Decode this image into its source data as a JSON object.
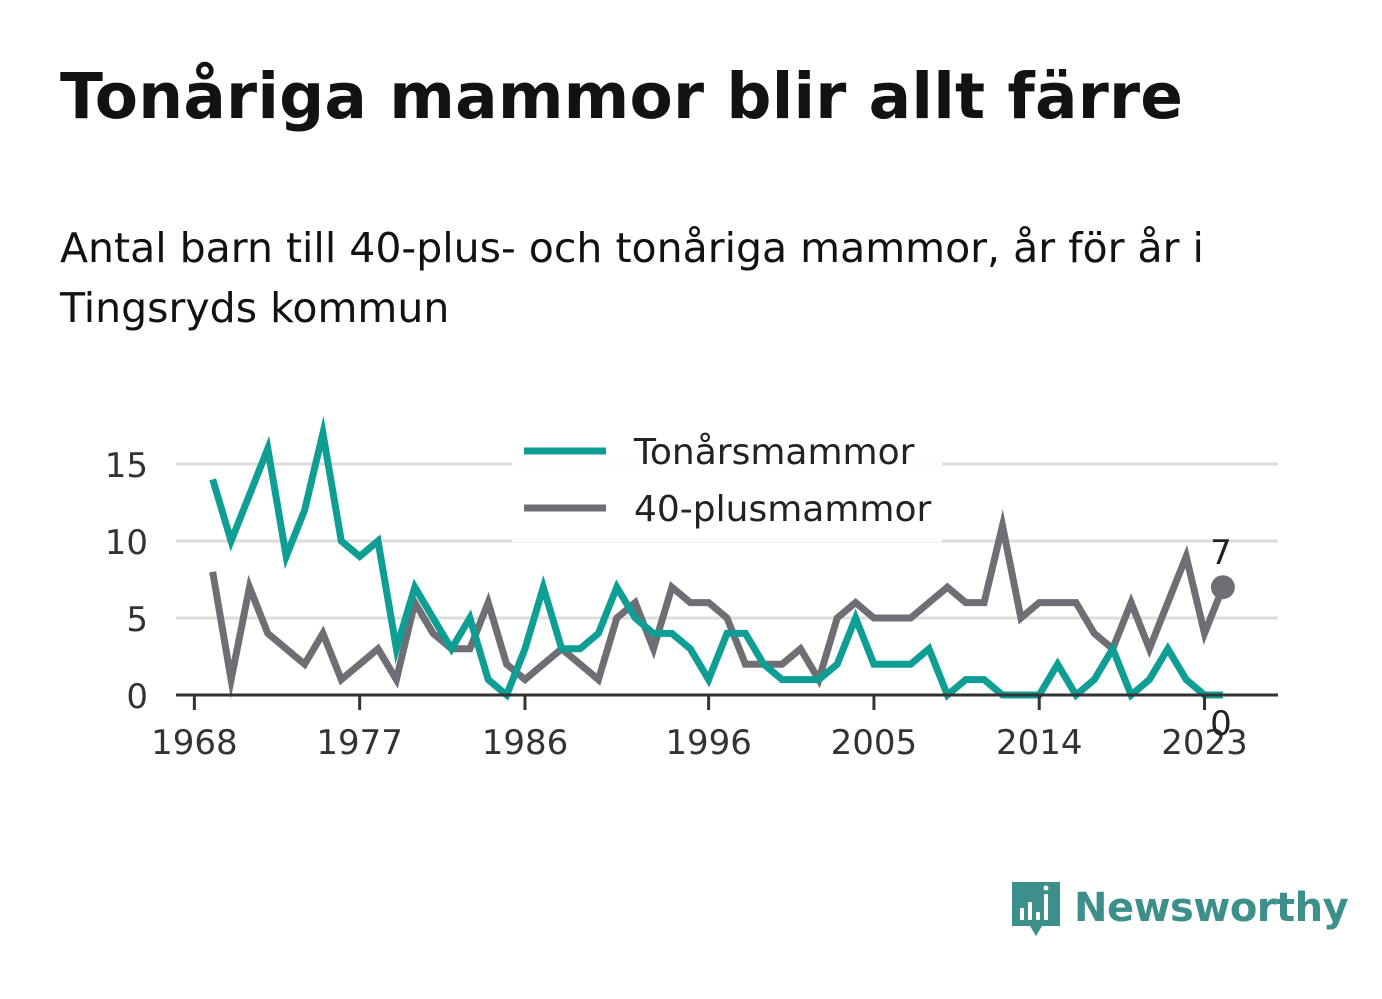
{
  "title": "Tonåriga mammor blir allt färre",
  "subtitle": "Antal barn till 40-plus- och tonåriga mammor, år för år i Tingsryds kommun",
  "brand": {
    "name": "Newsworthy",
    "icon": "newsworthy-logo-icon"
  },
  "chart_data": {
    "type": "line",
    "x": [
      1969,
      1970,
      1971,
      1972,
      1973,
      1974,
      1975,
      1976,
      1977,
      1978,
      1979,
      1980,
      1981,
      1982,
      1983,
      1984,
      1985,
      1986,
      1987,
      1988,
      1989,
      1990,
      1991,
      1992,
      1993,
      1994,
      1995,
      1996,
      1997,
      1998,
      1999,
      2000,
      2001,
      2002,
      2003,
      2004,
      2005,
      2006,
      2007,
      2008,
      2009,
      2010,
      2011,
      2012,
      2013,
      2014,
      2015,
      2016,
      2017,
      2018,
      2019,
      2020,
      2021,
      2022,
      2023,
      2024
    ],
    "series": [
      {
        "name": "Tonårsmammor",
        "color": "#0e9e94",
        "values": [
          14,
          10,
          13,
          16,
          9,
          12,
          17,
          10,
          9,
          10,
          3,
          7,
          5,
          3,
          5,
          1,
          0,
          3,
          7,
          3,
          3,
          4,
          7,
          5,
          4,
          4,
          3,
          1,
          4,
          4,
          2,
          1,
          1,
          1,
          2,
          5,
          2,
          2,
          2,
          3,
          0,
          1,
          1,
          0,
          0,
          0,
          2,
          0,
          1,
          3,
          0,
          1,
          3,
          1,
          0,
          0
        ]
      },
      {
        "name": "40-plusmammor",
        "color": "#6f6e74",
        "values": [
          8,
          1,
          7,
          4,
          3,
          2,
          4,
          1,
          2,
          3,
          1,
          6,
          4,
          3,
          3,
          6,
          2,
          1,
          2,
          3,
          2,
          1,
          5,
          6,
          3,
          7,
          6,
          6,
          5,
          2,
          2,
          2,
          3,
          1,
          5,
          6,
          5,
          5,
          5,
          6,
          7,
          6,
          6,
          11,
          5,
          6,
          6,
          6,
          4,
          3,
          6,
          3,
          6,
          9,
          4,
          7
        ]
      }
    ],
    "x_ticks": [
      1968,
      1977,
      1986,
      1996,
      2005,
      2014,
      2023
    ],
    "y_ticks": [
      0,
      5,
      10,
      15
    ],
    "ylim": [
      0,
      17
    ],
    "grid": true,
    "legend": "top-center",
    "end_labels": {
      "Tonårsmammor": "0",
      "40-plusmammor": "7"
    }
  }
}
